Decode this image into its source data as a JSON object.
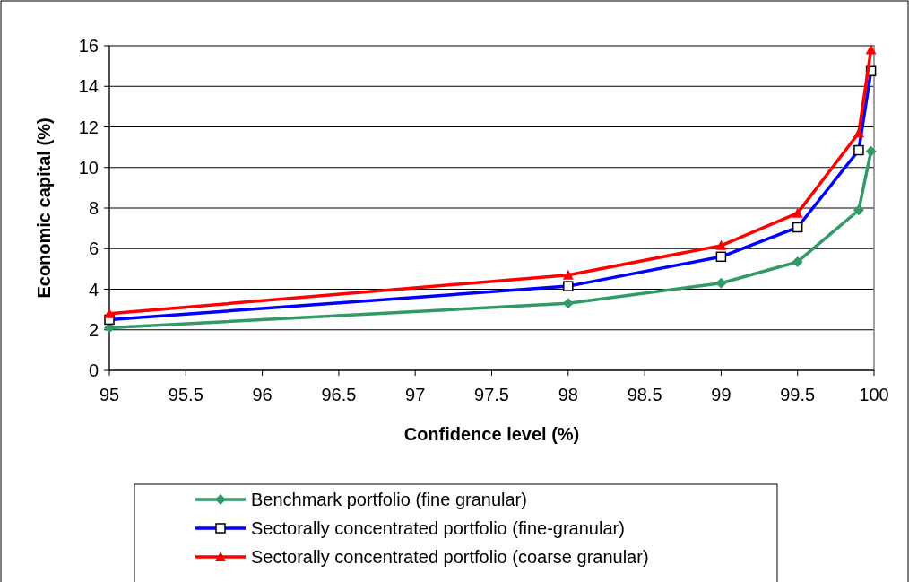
{
  "chart_data": {
    "type": "line",
    "xlabel": "Confidence level (%)",
    "ylabel": "Economic capital (%)",
    "x": [
      95,
      98,
      99,
      99.5,
      99.9,
      99.98
    ],
    "series": [
      {
        "name": "Benchmark portfolio (fine granular)",
        "color": "#339966",
        "marker": "diamond",
        "values": [
          2.1,
          3.3,
          4.3,
          5.35,
          7.9,
          10.8
        ]
      },
      {
        "name": "Sectorally concentrated portfolio (fine-granular)",
        "color": "#0000ff",
        "marker": "square",
        "values": [
          2.5,
          4.15,
          5.6,
          7.05,
          10.85,
          14.75
        ]
      },
      {
        "name": "Sectorally concentrated portfolio (coarse granular)",
        "color": "#ff0000",
        "marker": "triangle",
        "values": [
          2.8,
          4.7,
          6.15,
          7.75,
          11.7,
          15.8
        ]
      }
    ],
    "xlim": [
      95,
      100
    ],
    "xticks": [
      95,
      95.5,
      96,
      96.5,
      97,
      97.5,
      98,
      98.5,
      99,
      99.5,
      100
    ],
    "ylim": [
      0,
      16
    ],
    "yticks": [
      0,
      2,
      4,
      6,
      8,
      10,
      12,
      14,
      16
    ],
    "grid": "y",
    "legend": "bottom",
    "line_style": "solid"
  }
}
